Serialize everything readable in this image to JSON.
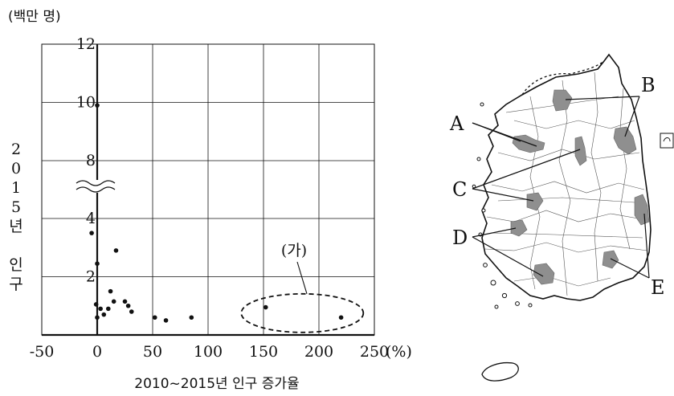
{
  "chart_data": {
    "type": "scatter",
    "title": "",
    "unit_label": "(백만 명)",
    "ylabel": "2015년 인구",
    "xlabel": "2010~2015년 인구 증가율",
    "x_unit": "(%)",
    "xlim": [
      -50,
      250
    ],
    "ylim": [
      0,
      12
    ],
    "x_ticks": [
      "-50",
      "0",
      "50",
      "100",
      "150",
      "200",
      "250"
    ],
    "y_ticks": [
      "2",
      "4",
      "8",
      "10",
      "12"
    ],
    "axis_break": "between 4 and 8 on y-axis",
    "grid": true,
    "annotation": {
      "label": "(가)",
      "note": "ellipse around points with growth 150–220%"
    },
    "points": [
      {
        "x": 0,
        "y": 9.9
      },
      {
        "x": -5,
        "y": 3.5
      },
      {
        "x": 17,
        "y": 2.9
      },
      {
        "x": 0,
        "y": 2.45
      },
      {
        "x": 12,
        "y": 1.5
      },
      {
        "x": -1,
        "y": 1.05
      },
      {
        "x": 3,
        "y": 0.9
      },
      {
        "x": 15,
        "y": 1.15
      },
      {
        "x": 25,
        "y": 1.15
      },
      {
        "x": 28,
        "y": 1.0
      },
      {
        "x": 31,
        "y": 0.8
      },
      {
        "x": 10,
        "y": 0.9
      },
      {
        "x": 6,
        "y": 0.7
      },
      {
        "x": 0,
        "y": 0.6
      },
      {
        "x": 52,
        "y": 0.6
      },
      {
        "x": 62,
        "y": 0.5
      },
      {
        "x": 85,
        "y": 0.6
      },
      {
        "x": 152,
        "y": 0.95
      },
      {
        "x": 220,
        "y": 0.6
      }
    ]
  },
  "map": {
    "labels": [
      "A",
      "B",
      "C",
      "D",
      "E"
    ]
  },
  "colors": {
    "ink": "#111111",
    "region_fill": "#8f8f8f"
  }
}
